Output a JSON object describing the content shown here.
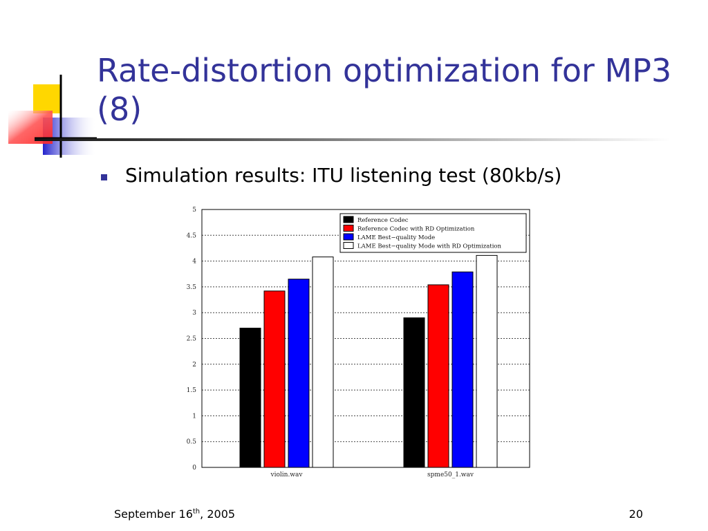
{
  "slide": {
    "title": "Rate-distortion optimization for MP3 (8)",
    "bullet": "Simulation results: ITU listening test (80kb/s)",
    "footer": {
      "date_prefix": "September 16",
      "date_sup": "th",
      "date_suffix": ", 2005",
      "page": "20"
    }
  },
  "colors": {
    "title": "#333399",
    "bullet": "#333399",
    "logo_yellow": "#ffd700",
    "logo_red": "#ff4444",
    "logo_blue": "#3333cc"
  },
  "chart_data": {
    "type": "bar",
    "categories": [
      "violin.wav",
      "spme50_1.wav"
    ],
    "series": [
      {
        "name": "Reference Codec",
        "color": "#000000",
        "values": [
          2.7,
          2.9
        ]
      },
      {
        "name": "Reference Codec with RD Optimization",
        "color": "#ff0000",
        "values": [
          3.42,
          3.54
        ]
      },
      {
        "name": "LAME Best−quality Mode",
        "color": "#0000ff",
        "values": [
          3.65,
          3.79
        ]
      },
      {
        "name": "LAME Best−quality Mode with RD Optimization",
        "color": "#ffffff",
        "values": [
          4.08,
          4.11
        ]
      }
    ],
    "ylim": [
      0,
      5
    ],
    "yticks": [
      "0",
      "0.5",
      "1",
      "1.5",
      "2",
      "2.5",
      "3",
      "3.5",
      "4",
      "4.5",
      "5"
    ],
    "grid": "horizontal-dashed",
    "legend": "top-right"
  }
}
